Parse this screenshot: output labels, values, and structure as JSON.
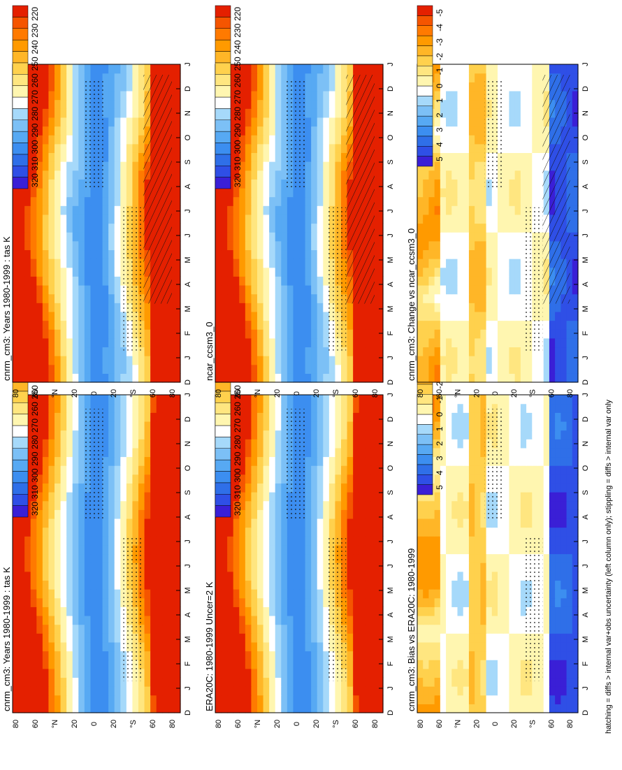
{
  "page_orientation": "rotated 90 degrees counter-clockwise",
  "footnote": "hatching = diffs > internal var+obs uncertainty (left column only); stippling = diffs > internal var only",
  "colors": {
    "temperature_scale": [
      "#3a1fd6",
      "#2f4fe6",
      "#2f6fe8",
      "#3c8ef0",
      "#57a9f3",
      "#7cc0f6",
      "#a6d9fa",
      "#ffffff",
      "#fff6b0",
      "#ffe680",
      "#ffd14d",
      "#ffb627",
      "#ff9a00",
      "#ff7a00",
      "#f55500",
      "#e42000"
    ],
    "difference_scale": [
      "#3a1fd6",
      "#2f4fe6",
      "#2f6fe8",
      "#3c8ef0",
      "#57a9f3",
      "#7cc0f6",
      "#a6d9fa",
      "#ffffff",
      "#fff6b0",
      "#ffe680",
      "#ffd14d",
      "#ffb627",
      "#ff9a00",
      "#ff7a00",
      "#f55500",
      "#e42000"
    ]
  },
  "panels": [
    {
      "id": "model-clim-left",
      "title": "cnrm_cm3: Years 1980-1999 : tas K",
      "kind": "temperature",
      "colorbar_labels": [
        "320",
        "310",
        "300",
        "290",
        "280",
        "270",
        "260",
        "250",
        "240",
        "230",
        "220"
      ]
    },
    {
      "id": "model-clim-right",
      "title": "cnrm_cm3: Years 1980-1999 : tas K",
      "kind": "temperature",
      "colorbar_labels": [
        "320",
        "310",
        "300",
        "290",
        "280",
        "270",
        "260",
        "250",
        "240",
        "230",
        "220"
      ]
    },
    {
      "id": "reference-era20c",
      "title": "ERA20C: 1980-1999 Uncer=2 K",
      "kind": "temperature",
      "colorbar_labels": [
        "320",
        "310",
        "300",
        "290",
        "280",
        "270",
        "260",
        "250",
        "240",
        "230",
        "220"
      ]
    },
    {
      "id": "reference-ncar",
      "title": "ncar_ccsm3_0",
      "kind": "temperature",
      "colorbar_labels": [
        "320",
        "310",
        "300",
        "290",
        "280",
        "270",
        "260",
        "250",
        "240",
        "230",
        "220"
      ]
    },
    {
      "id": "bias-era20c",
      "title": "cnrm_cm3: Bias vs ERA20C: 1980-1999",
      "kind": "difference",
      "colorbar_labels": [
        "5",
        "4",
        "3",
        "2",
        "1",
        "0",
        "-1",
        "-2",
        "-3",
        "-4",
        "-5"
      ]
    },
    {
      "id": "change-ncar",
      "title": "cnrm_cm3: Change vs ncar_ccsm3_0",
      "kind": "difference",
      "colorbar_labels": [
        "5",
        "4",
        "3",
        "2",
        "1",
        "0",
        "-1",
        "-2",
        "-3",
        "-4",
        "-5"
      ]
    }
  ],
  "axes": {
    "month_labels": [
      "D",
      "J",
      "F",
      "M",
      "A",
      "M",
      "J",
      "J",
      "A",
      "S",
      "O",
      "N",
      "D",
      "J"
    ],
    "latitude_labels": [
      "80",
      "60",
      "°N",
      "20",
      "0",
      "20",
      "°S",
      "60",
      "80"
    ]
  },
  "chart_data": [
    {
      "type": "heatmap",
      "title": "cnrm_cm3: Years 1980-1999 : tas K",
      "x": [
        "D",
        "J",
        "F",
        "M",
        "A",
        "M",
        "J",
        "J",
        "A",
        "S",
        "O",
        "N",
        "D",
        "J"
      ],
      "y": [
        "80",
        "60",
        "°N",
        "20",
        "0",
        "20",
        "°S",
        "60",
        "80"
      ],
      "colorbar": [
        320,
        310,
        300,
        290,
        280,
        270,
        260,
        250,
        240,
        230,
        220
      ],
      "description_value_range": [
        220,
        320
      ],
      "hatching": true,
      "stippling": true
    },
    {
      "type": "heatmap",
      "title": "cnrm_cm3: Years 1980-1999 : tas K",
      "x": [
        "D",
        "J",
        "F",
        "M",
        "A",
        "M",
        "J",
        "J",
        "A",
        "S",
        "O",
        "N",
        "D",
        "J"
      ],
      "y": [
        "80",
        "60",
        "°N",
        "20",
        "0",
        "20",
        "°S",
        "60",
        "80"
      ],
      "colorbar": [
        320,
        310,
        300,
        290,
        280,
        270,
        260,
        250,
        240,
        230,
        220
      ],
      "stippling": true
    },
    {
      "type": "heatmap",
      "title": "ERA20C: 1980-1999 Uncer=2 K",
      "x": [
        "D",
        "J",
        "F",
        "M",
        "A",
        "M",
        "J",
        "J",
        "A",
        "S",
        "O",
        "N",
        "D",
        "J"
      ],
      "y": [
        "80",
        "60",
        "°N",
        "20",
        "0",
        "20",
        "°S",
        "60",
        "80"
      ],
      "colorbar": [
        320,
        310,
        300,
        290,
        280,
        270,
        260,
        250,
        240,
        230,
        220
      ],
      "hatching": true,
      "stippling": true
    },
    {
      "type": "heatmap",
      "title": "ncar_ccsm3_0",
      "x": [
        "D",
        "J",
        "F",
        "M",
        "A",
        "M",
        "J",
        "J",
        "A",
        "S",
        "O",
        "N",
        "D",
        "J"
      ],
      "y": [
        "80",
        "60",
        "°N",
        "20",
        "0",
        "20",
        "°S",
        "60",
        "80"
      ],
      "colorbar": [
        320,
        310,
        300,
        290,
        280,
        270,
        260,
        250,
        240,
        230,
        220
      ],
      "stippling": true
    },
    {
      "type": "heatmap",
      "title": "cnrm_cm3: Bias vs ERA20C: 1980-1999",
      "x": [
        "D",
        "J",
        "F",
        "M",
        "A",
        "M",
        "J",
        "J",
        "A",
        "S",
        "O",
        "N",
        "D",
        "J"
      ],
      "y": [
        "80",
        "60",
        "°N",
        "20",
        "0",
        "20",
        "°S",
        "60",
        "80"
      ],
      "colorbar": [
        5,
        4,
        3,
        2,
        1,
        0,
        -1,
        -2,
        -3,
        -4,
        -5
      ],
      "hatching": true,
      "stippling": true
    },
    {
      "type": "heatmap",
      "title": "cnrm_cm3: Change vs ncar_ccsm3_0",
      "x": [
        "D",
        "J",
        "F",
        "M",
        "A",
        "M",
        "J",
        "J",
        "A",
        "S",
        "O",
        "N",
        "D",
        "J"
      ],
      "y": [
        "80",
        "60",
        "°N",
        "20",
        "0",
        "20",
        "°S",
        "60",
        "80"
      ],
      "colorbar": [
        5,
        4,
        3,
        2,
        1,
        0,
        -1,
        -2,
        -3,
        -4,
        -5
      ],
      "stippling": true
    }
  ]
}
